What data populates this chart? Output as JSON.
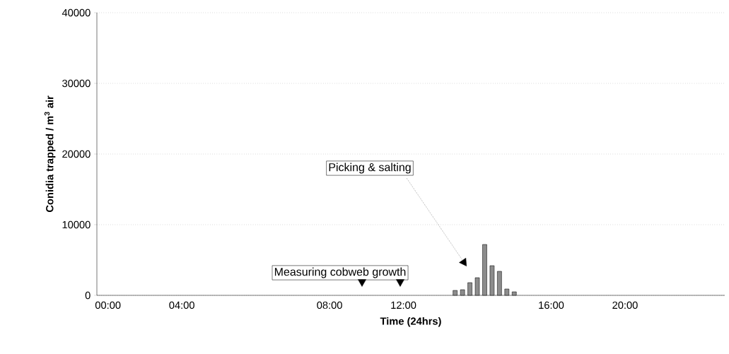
{
  "chart_data": {
    "type": "bar",
    "xlabel": "Time (24hrs)",
    "ylabel": "Conidia trapped / m$^{3}$ air",
    "categories": [
      null,
      "00:00",
      null,
      null,
      null,
      null,
      null,
      null,
      null,
      null,
      null,
      "04:00",
      null,
      null,
      null,
      null,
      null,
      null,
      null,
      null,
      null,
      null,
      null,
      null,
      null,
      null,
      null,
      null,
      null,
      null,
      null,
      "08:00",
      null,
      null,
      null,
      null,
      null,
      null,
      null,
      null,
      null,
      "12:00",
      null,
      null,
      null,
      null,
      null,
      null,
      null,
      null,
      null,
      null,
      null,
      null,
      null,
      null,
      null,
      null,
      null,
      null,
      null,
      "16:00",
      null,
      null,
      null,
      null,
      null,
      null,
      null,
      null,
      null,
      "20:00",
      null,
      null,
      null,
      null,
      null,
      null,
      null,
      null,
      null,
      null,
      null,
      null,
      null
    ],
    "values": [
      null,
      null,
      null,
      null,
      null,
      null,
      null,
      null,
      null,
      null,
      null,
      null,
      null,
      null,
      null,
      null,
      null,
      null,
      null,
      null,
      null,
      null,
      null,
      null,
      null,
      null,
      null,
      null,
      null,
      null,
      null,
      null,
      null,
      null,
      null,
      null,
      null,
      null,
      null,
      null,
      null,
      null,
      null,
      null,
      null,
      null,
      null,
      null,
      700,
      800,
      1800,
      2500,
      7200,
      4200,
      3400,
      900,
      500,
      null,
      null,
      null,
      null,
      null,
      null,
      null,
      null,
      null,
      null,
      null,
      null,
      null,
      null,
      null,
      null,
      null,
      null,
      null,
      null,
      null,
      null,
      null,
      null,
      null,
      null,
      null,
      null
    ],
    "color": "#8c8c8c",
    "ylim": [
      0,
      40000
    ],
    "yticks": [
      0,
      10000,
      20000,
      30000,
      40000
    ],
    "grid": "y",
    "annotations": [
      "Picking & salting",
      "Measuring cobweb growth"
    ]
  }
}
